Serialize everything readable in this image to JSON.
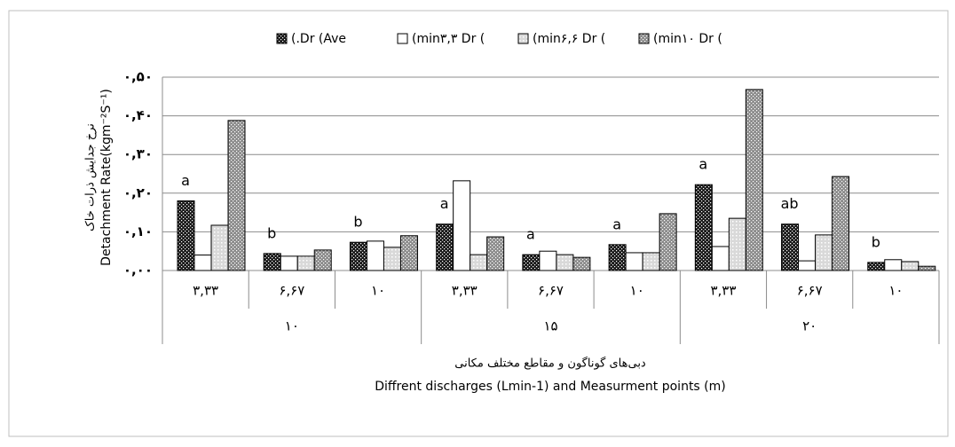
{
  "chart_data": {
    "type": "bar",
    "categories": [
      "۳,۳۳",
      "۶,۶۷",
      "۱۰",
      "۳,۳۳",
      "۶,۶۷",
      "۱۰",
      "۳,۳۳",
      "۶,۶۷",
      "۱۰"
    ],
    "groups": [
      "۱۰",
      "۱۵",
      "۲۰"
    ],
    "y_label": [
      "نرخ جدایش ذرات خاک",
      "Detachment Rate(kgm⁻²S⁻¹)"
    ],
    "x_label": [
      "دبی‌های گوناگون و مقاطع مختلف مکانی",
      "Diffrent discharges (Lmin-1) and Measurment points (m)"
    ],
    "series": [
      {
        "name": "(.Dr (Ave",
        "color": "#1a1a1a",
        "values": [
          0.18,
          0.044,
          0.073,
          0.12,
          0.041,
          0.067,
          0.222,
          0.12,
          0.021
        ]
      },
      {
        "name": "(min۳,۳ Dr (",
        "color": "#ffffff",
        "values": [
          0.04,
          0.037,
          0.076,
          0.232,
          0.05,
          0.046,
          0.062,
          0.025,
          0.028
        ]
      },
      {
        "name": "(min۶,۶ Dr (",
        "color": "#d9d9d9",
        "values": [
          0.117,
          0.037,
          0.06,
          0.041,
          0.041,
          0.046,
          0.135,
          0.092,
          0.023
        ]
      },
      {
        "name": "(min۱۰ Dr (",
        "color": "#8c8c8c",
        "values": [
          0.388,
          0.053,
          0.09,
          0.087,
          0.034,
          0.147,
          0.468,
          0.243,
          0.011
        ]
      }
    ],
    "annotations": [
      "a",
      "b",
      "b",
      "a",
      "a",
      "a",
      "a",
      "ab",
      "b"
    ],
    "ylim": [
      0,
      0.5
    ],
    "yticks": [
      {
        "value": 0,
        "label": "۰,۰۰"
      },
      {
        "value": 0.1,
        "label": "۰,۱۰"
      },
      {
        "value": 0.2,
        "label": "۰,۲۰"
      },
      {
        "value": 0.3,
        "label": "۰,۳۰"
      },
      {
        "value": 0.4,
        "label": "۰,۴۰"
      },
      {
        "value": 0.5,
        "label": "۰,۵۰"
      }
    ],
    "grid": true,
    "legend": "top"
  }
}
